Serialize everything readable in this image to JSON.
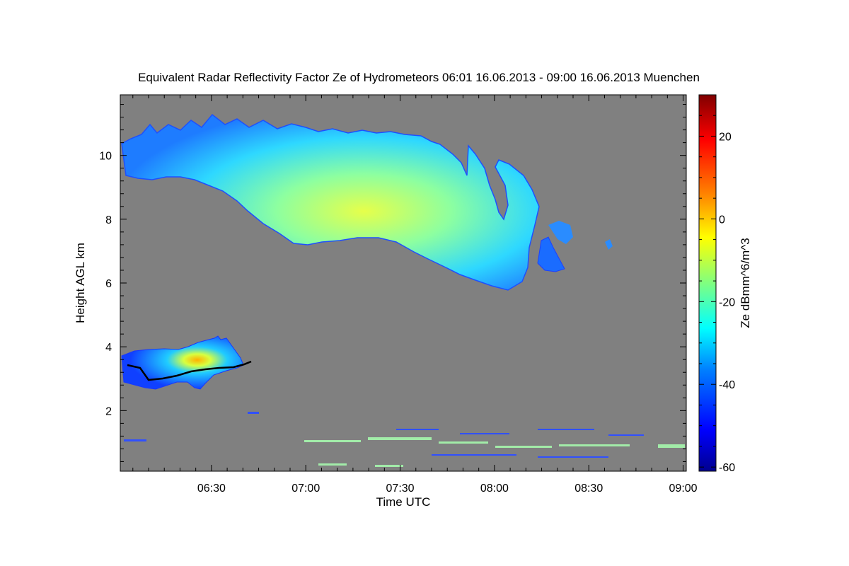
{
  "chart_data": {
    "type": "heatmap",
    "title": "Equivalent Radar Reflectivity Factor Ze of Hydrometeors   06:01 16.06.2013 - 09:00 16.06.2013 Muenchen",
    "xlabel": "Time UTC",
    "ylabel": "Height AGL km",
    "colorbar_label": "Ze dBmm^6/m^3",
    "x_ticks": [
      {
        "label": "06:30",
        "minutes": 390
      },
      {
        "label": "07:00",
        "minutes": 420
      },
      {
        "label": "07:30",
        "minutes": 450
      },
      {
        "label": "08:00",
        "minutes": 480
      },
      {
        "label": "08:30",
        "minutes": 510
      },
      {
        "label": "09:00",
        "minutes": 540
      }
    ],
    "y_ticks": [
      2,
      4,
      6,
      8,
      10
    ],
    "xlim_minutes": [
      361,
      541
    ],
    "ylim_km": [
      0.1,
      11.9
    ],
    "colorbar_ticks": [
      20,
      0,
      -20,
      -40,
      -60
    ],
    "colorbar_range": [
      -61,
      30
    ],
    "colors": {
      "background": "#808080",
      "colormap": [
        "#00008f",
        "#0000ff",
        "#0080ff",
        "#00ffff",
        "#80ff80",
        "#ffff00",
        "#ff8000",
        "#ff0000",
        "#800000"
      ]
    },
    "regions": [
      {
        "name": "upper cloud layer",
        "time_start": "06:01",
        "time_end": "08:40",
        "base_km_min": 6.0,
        "top_km_max": 11.0,
        "ze_dbz_core": -12
      },
      {
        "name": "lower cloud layer",
        "time_start": "06:01",
        "time_end": "06:42",
        "base_km": 2.8,
        "top_km": 4.4,
        "ze_dbz_core": -5
      },
      {
        "name": "boundary layer echoes",
        "time_start": "06:01",
        "time_end": "09:00",
        "base_km": 0.2,
        "top_km": 1.6,
        "ze_dbz_core": -35
      }
    ]
  }
}
